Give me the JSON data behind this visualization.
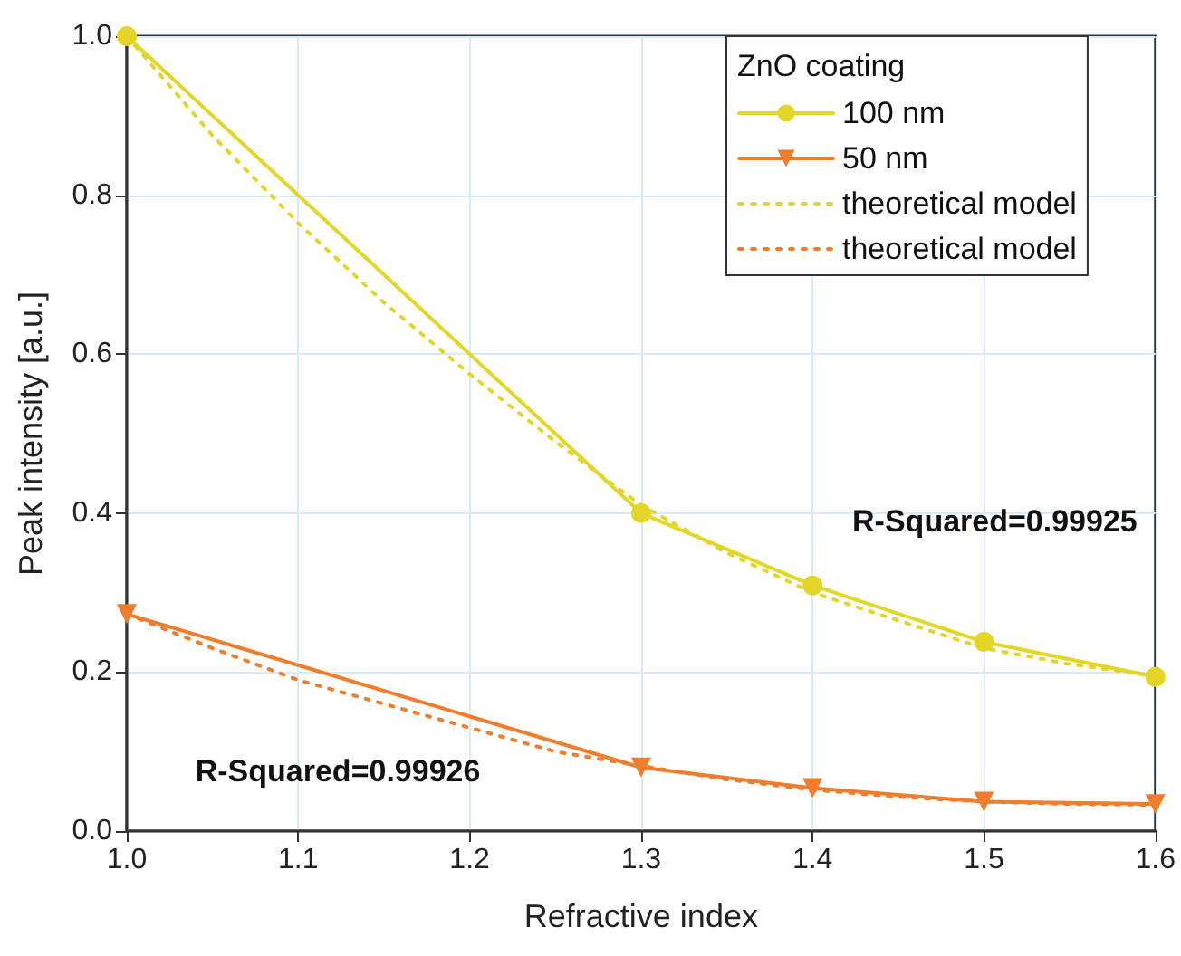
{
  "chart_data": {
    "type": "line",
    "xlabel": "Refractive index",
    "ylabel": "Peak intensity [a.u.]",
    "legend_title": "ZnO coating",
    "series": [
      {
        "name": "100 nm",
        "color": "#e3d626",
        "marker": "circle",
        "line_style": "solid",
        "x": [
          1.0,
          1.3,
          1.4,
          1.5,
          1.6
        ],
        "values": [
          1.0,
          0.4,
          0.309,
          0.238,
          0.194
        ]
      },
      {
        "name": "50 nm",
        "color": "#f07c2c",
        "marker": "triangle",
        "line_style": "solid",
        "x": [
          1.0,
          1.3,
          1.4,
          1.5,
          1.6
        ],
        "values": [
          0.273,
          0.08,
          0.054,
          0.037,
          0.034
        ]
      },
      {
        "name": "theoretical model",
        "color": "#e3d626",
        "marker": "none",
        "line_style": "dotted",
        "x": [
          1.0,
          1.05,
          1.1,
          1.15,
          1.2,
          1.25,
          1.3,
          1.35,
          1.4,
          1.45,
          1.5,
          1.55,
          1.6
        ],
        "values": [
          1.0,
          0.875,
          0.765,
          0.665,
          0.575,
          0.49,
          0.41,
          0.35,
          0.3,
          0.265,
          0.23,
          0.21,
          0.195
        ]
      },
      {
        "name": "theoretical model",
        "color": "#f07c2c",
        "marker": "none",
        "line_style": "dotted",
        "x": [
          1.0,
          1.05,
          1.1,
          1.15,
          1.2,
          1.25,
          1.3,
          1.35,
          1.4,
          1.45,
          1.5,
          1.55,
          1.6
        ],
        "values": [
          0.273,
          0.23,
          0.19,
          0.16,
          0.13,
          0.1,
          0.082,
          0.065,
          0.052,
          0.043,
          0.037,
          0.034,
          0.033
        ]
      }
    ],
    "xlim": [
      1.0,
      1.6
    ],
    "xticks": [
      {
        "value": 1.0,
        "label": "1.0"
      },
      1.1,
      1.2,
      1.3,
      1.4,
      1.5,
      1.6
    ],
    "ylim": [
      0.0,
      1.0
    ],
    "yticks": [
      {
        "value": 0.0,
        "label": "0.0"
      },
      0.2,
      0.4,
      0.6,
      0.8,
      {
        "value": 1.0,
        "label": "1.0"
      }
    ],
    "grid": true,
    "legend": "top right",
    "annotations": [
      "R-Squared=0.99925",
      "R-Squared=0.99926"
    ]
  }
}
